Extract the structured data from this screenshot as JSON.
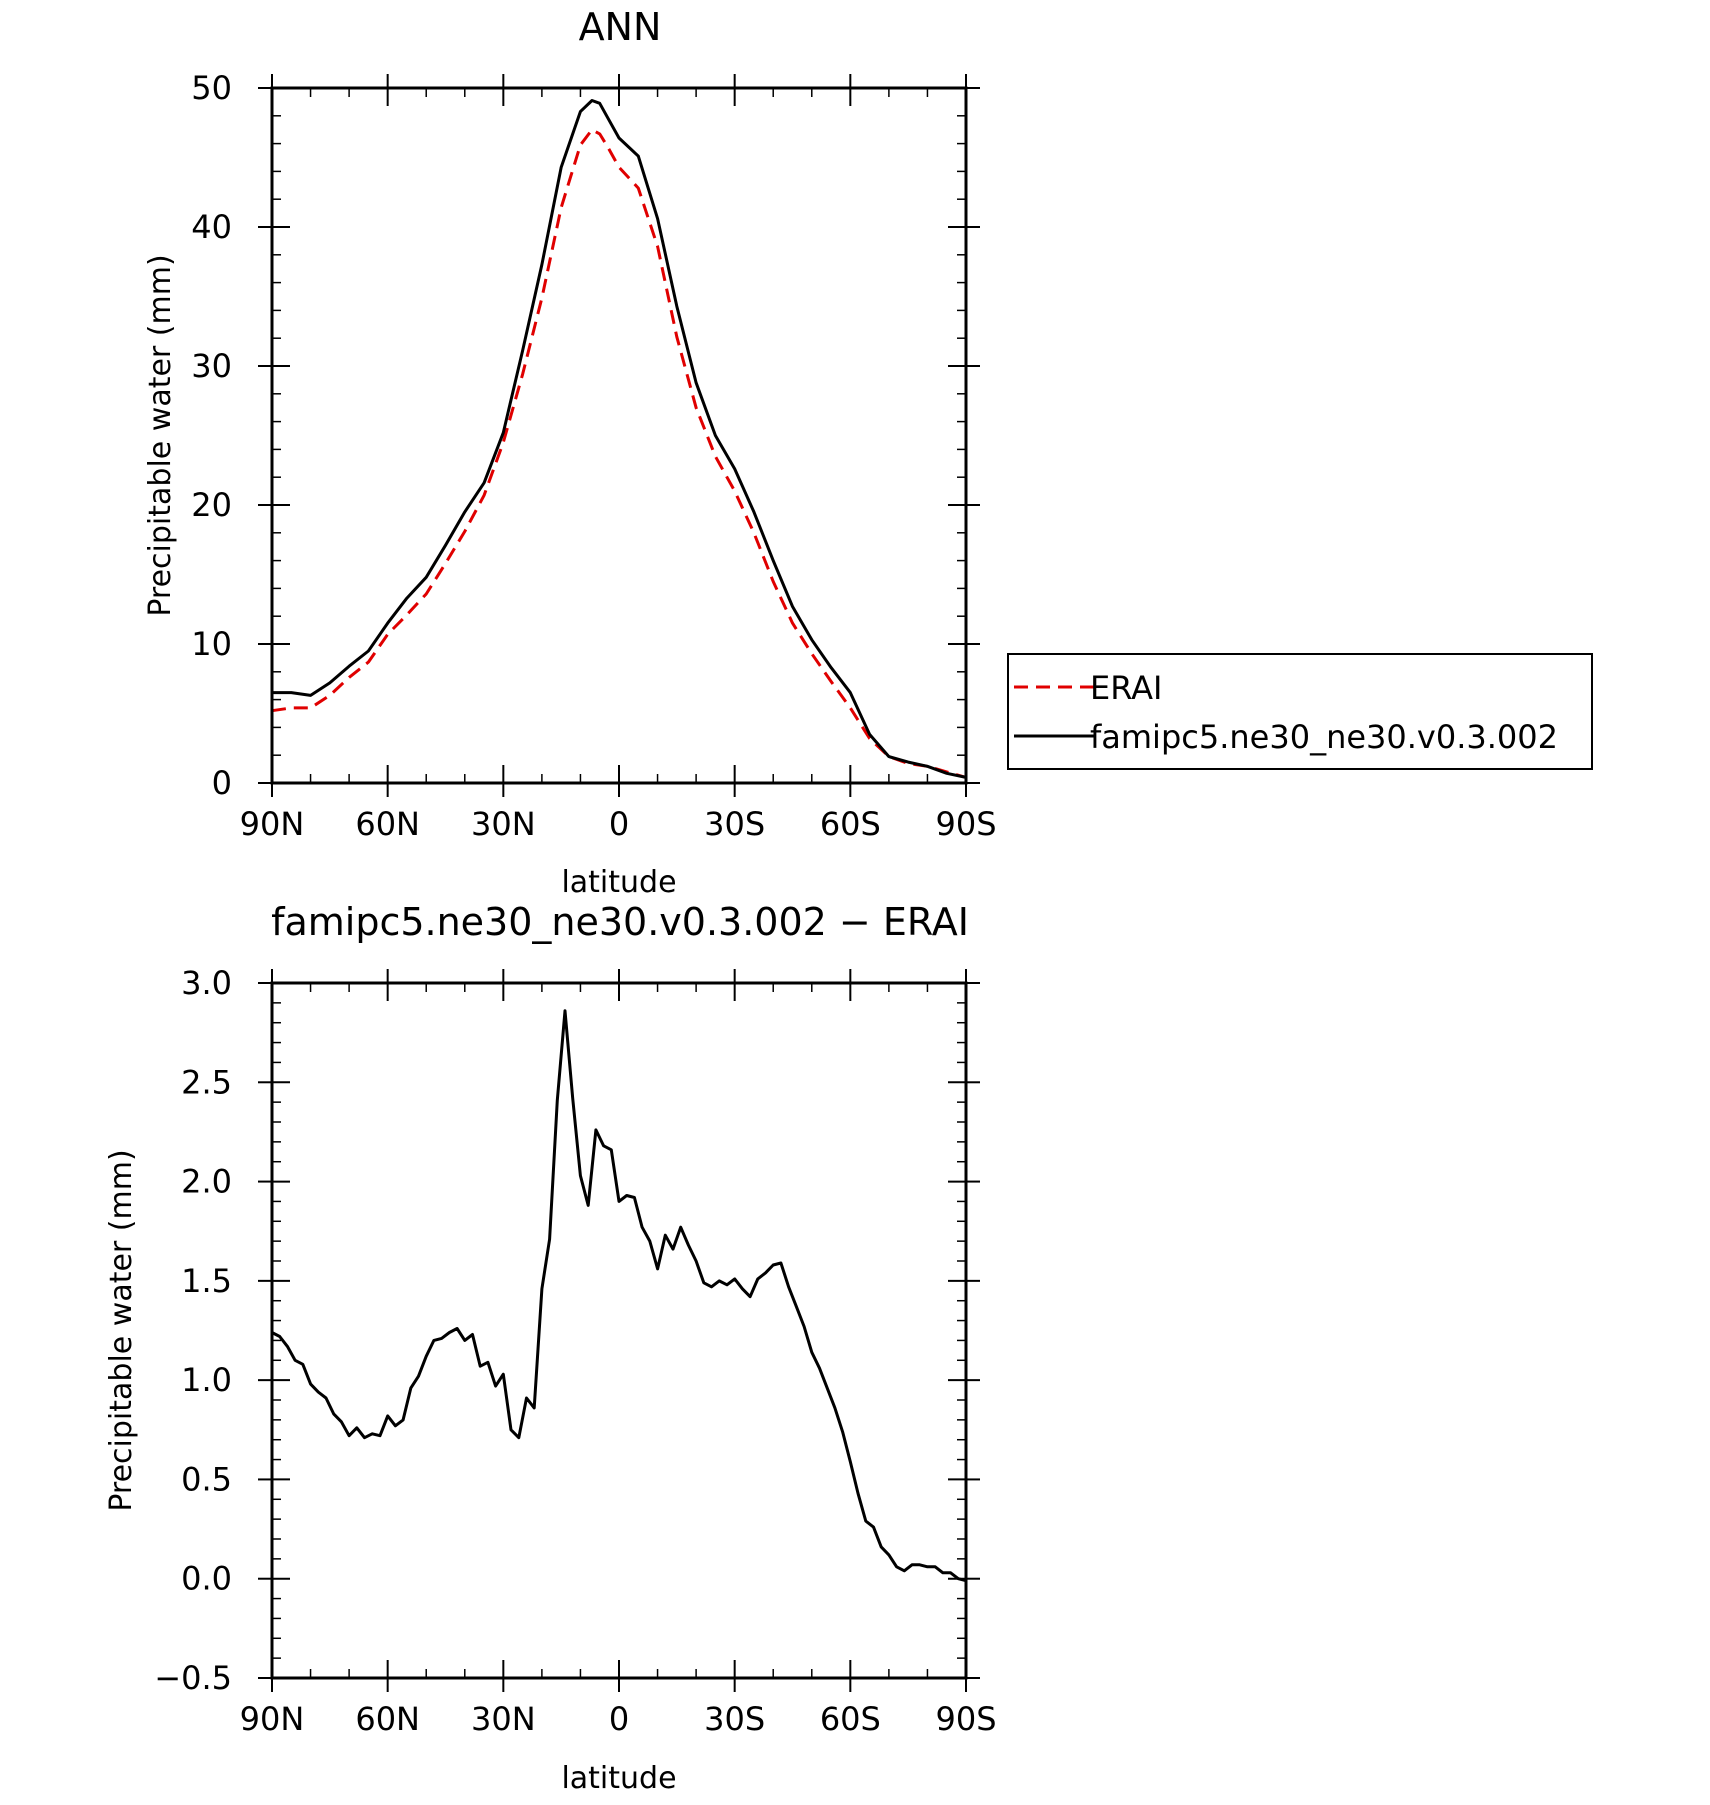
{
  "chart_data": [
    {
      "type": "line",
      "title": "ANN",
      "xlabel": "latitude",
      "ylabel": "Precipitable water (mm)",
      "xlim": [
        90,
        -90
      ],
      "ylim": [
        0,
        50
      ],
      "x_ticks": [
        90,
        60,
        30,
        0,
        -30,
        -60,
        -90
      ],
      "x_tick_labels": [
        "90N",
        "60N",
        "30N",
        "0",
        "30S",
        "60S",
        "90S"
      ],
      "y_ticks": [
        0,
        10,
        20,
        30,
        40,
        50
      ],
      "y_tick_labels": [
        "0",
        "10",
        "20",
        "30",
        "40",
        "50"
      ],
      "grid": false,
      "legend_position": "right",
      "series": [
        {
          "name": "ERAI",
          "color": "#e00000",
          "dash": "dashed",
          "x": [
            90,
            85,
            80,
            75,
            70,
            65,
            60,
            55,
            50,
            45,
            40,
            35,
            30,
            25,
            20,
            15,
            10,
            7,
            5,
            3,
            0,
            -5,
            -10,
            -15,
            -20,
            -25,
            -30,
            -35,
            -40,
            -45,
            -50,
            -55,
            -60,
            -65,
            -70,
            -75,
            -80,
            -85,
            -90
          ],
          "values": [
            5.2,
            5.4,
            5.4,
            6.3,
            7.6,
            8.7,
            10.7,
            12.1,
            13.6,
            15.8,
            18.1,
            20.7,
            24.5,
            29.4,
            34.9,
            41.4,
            45.9,
            47.0,
            46.7,
            45.8,
            44.3,
            42.8,
            38.6,
            32.1,
            27.0,
            23.5,
            21.0,
            18.0,
            14.5,
            11.5,
            9.3,
            7.3,
            5.4,
            3.2,
            1.9,
            1.4,
            1.2,
            0.8,
            0.4
          ]
        },
        {
          "name": "famipc5.ne30_ne30.v0.3.002",
          "color": "#000000",
          "dash": "solid",
          "x": [
            90,
            85,
            80,
            75,
            70,
            65,
            60,
            55,
            50,
            45,
            40,
            35,
            30,
            25,
            20,
            15,
            10,
            7,
            5,
            3,
            0,
            -5,
            -10,
            -15,
            -20,
            -25,
            -30,
            -35,
            -40,
            -45,
            -50,
            -55,
            -60,
            -65,
            -70,
            -75,
            -80,
            -85,
            -90
          ],
          "values": [
            6.5,
            6.5,
            6.3,
            7.2,
            8.4,
            9.5,
            11.5,
            13.3,
            14.8,
            17.1,
            19.5,
            21.6,
            25.2,
            31.1,
            37.3,
            44.3,
            48.3,
            49.1,
            48.9,
            47.9,
            46.4,
            45.1,
            40.6,
            34.3,
            28.8,
            25.0,
            22.6,
            19.5,
            16.0,
            12.7,
            10.3,
            8.3,
            6.5,
            3.5,
            1.9,
            1.5,
            1.2,
            0.7,
            0.4
          ]
        }
      ]
    },
    {
      "type": "line",
      "title": "famipc5.ne30_ne30.v0.3.002 − ERAI",
      "xlabel": "latitude",
      "ylabel": "Precipitable water (mm)",
      "xlim": [
        90,
        -90
      ],
      "ylim": [
        -0.5,
        3.0
      ],
      "x_ticks": [
        90,
        60,
        30,
        0,
        -30,
        -60,
        -90
      ],
      "x_tick_labels": [
        "90N",
        "60N",
        "30N",
        "0",
        "30S",
        "60S",
        "90S"
      ],
      "y_ticks": [
        -0.5,
        0.0,
        0.5,
        1.0,
        1.5,
        2.0,
        2.5,
        3.0
      ],
      "y_tick_labels": [
        "−0.5",
        "0.0",
        "0.5",
        "1.0",
        "1.5",
        "2.0",
        "2.5",
        "3.0"
      ],
      "grid": false,
      "series": [
        {
          "color": "#000000",
          "dash": "solid",
          "x": [
            90,
            88,
            86,
            84,
            82,
            80,
            78,
            76,
            74,
            72,
            70,
            68,
            66,
            64,
            62,
            60,
            58,
            56,
            54,
            52,
            50,
            48,
            46,
            44,
            42,
            40,
            38,
            36,
            34,
            32,
            30,
            28,
            26,
            24,
            22,
            20,
            18,
            16,
            14,
            12,
            10,
            8,
            6,
            4,
            2,
            0,
            -2,
            -4,
            -6,
            -8,
            -10,
            -12,
            -14,
            -16,
            -18,
            -20,
            -22,
            -24,
            -26,
            -28,
            -30,
            -32,
            -34,
            -36,
            -38,
            -40,
            -42,
            -44,
            -46,
            -48,
            -50,
            -52,
            -54,
            -56,
            -58,
            -60,
            -62,
            -64,
            -66,
            -68,
            -70,
            -72,
            -74,
            -76,
            -78,
            -80,
            -82,
            -84,
            -86,
            -88,
            -90
          ],
          "values": [
            1.24,
            1.22,
            1.17,
            1.1,
            1.08,
            0.98,
            0.94,
            0.91,
            0.83,
            0.79,
            0.72,
            0.76,
            0.71,
            0.73,
            0.72,
            0.82,
            0.77,
            0.8,
            0.96,
            1.02,
            1.12,
            1.2,
            1.21,
            1.24,
            1.26,
            1.2,
            1.23,
            1.07,
            1.09,
            0.97,
            1.03,
            0.75,
            0.71,
            0.91,
            0.86,
            1.46,
            1.71,
            2.41,
            2.86,
            2.42,
            2.03,
            1.88,
            2.26,
            2.18,
            2.16,
            1.9,
            1.93,
            1.92,
            1.77,
            1.7,
            1.56,
            1.73,
            1.66,
            1.77,
            1.68,
            1.6,
            1.49,
            1.47,
            1.5,
            1.48,
            1.51,
            1.46,
            1.42,
            1.51,
            1.54,
            1.58,
            1.59,
            1.47,
            1.37,
            1.27,
            1.14,
            1.06,
            0.96,
            0.86,
            0.74,
            0.59,
            0.43,
            0.29,
            0.26,
            0.16,
            0.12,
            0.06,
            0.04,
            0.07,
            0.07,
            0.06,
            0.06,
            0.03,
            0.03,
            0.0,
            -0.01
          ]
        }
      ]
    }
  ]
}
